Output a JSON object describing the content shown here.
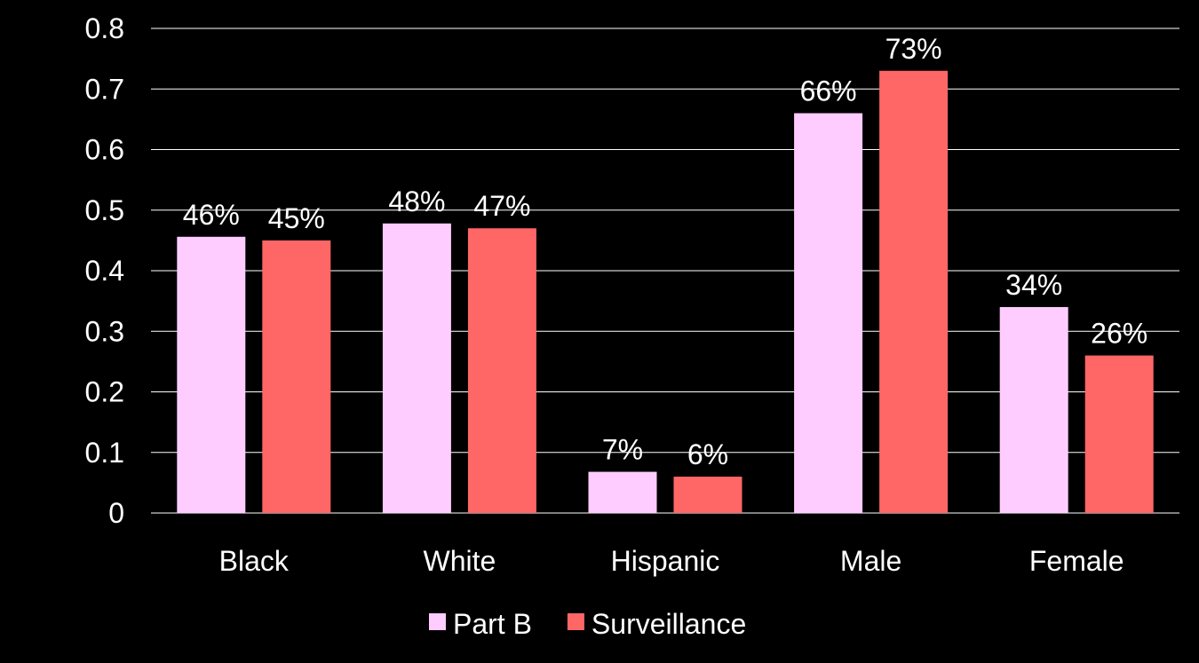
{
  "chart_data": {
    "type": "bar",
    "categories": [
      "Black",
      "White",
      "Hispanic",
      "Male",
      "Female"
    ],
    "series": [
      {
        "name": "Part B",
        "values": [
          0.456,
          0.478,
          0.068,
          0.66,
          0.34
        ],
        "labels": [
          "46%",
          "48%",
          "7%",
          "66%",
          "34%"
        ],
        "color": "#FFCCFF"
      },
      {
        "name": "Surveillance",
        "values": [
          0.45,
          0.47,
          0.06,
          0.73,
          0.26
        ],
        "labels": [
          "45%",
          "47%",
          "6%",
          "73%",
          "26%"
        ],
        "color": "#FF6666"
      }
    ],
    "ylim": [
      0,
      0.8
    ],
    "yticks": [
      "0",
      "0.1",
      "0.2",
      "0.3",
      "0.4",
      "0.5",
      "0.6",
      "0.7",
      "0.8"
    ],
    "grid": true,
    "legend": "bottom",
    "background": "#000000",
    "text_color": "#FFFFFF",
    "grid_color": "#FFFFFF"
  }
}
